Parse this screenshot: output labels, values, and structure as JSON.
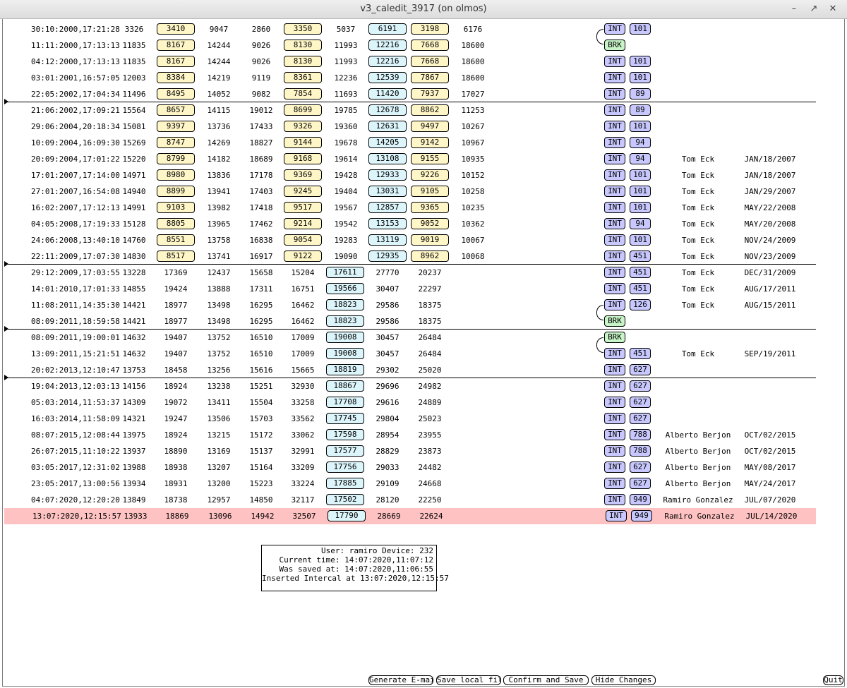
{
  "window": {
    "title": "v3_caledit_3917 (on olmos)"
  },
  "rows": [
    {
      "cells": [
        "30:10:2000,17:21:28",
        "3326",
        "3410",
        "9047",
        "2860",
        "3350",
        "5037",
        "6191",
        "3198",
        "6176"
      ],
      "layout": "A",
      "type": "INT",
      "num": "101",
      "user": "",
      "date": ""
    },
    {
      "cells": [
        "11:11:2000,17:13:13",
        "11835",
        "8167",
        "14244",
        "9026",
        "8130",
        "11993",
        "12216",
        "7668",
        "18600"
      ],
      "layout": "A",
      "type": "BRK",
      "num": "",
      "user": "",
      "date": ""
    },
    {
      "cells": [
        "04:12:2000,17:13:13",
        "11835",
        "8167",
        "14244",
        "9026",
        "8130",
        "11993",
        "12216",
        "7668",
        "18600"
      ],
      "layout": "A",
      "type": "INT",
      "num": "101",
      "user": "",
      "date": ""
    },
    {
      "cells": [
        "03:01:2001,16:57:05",
        "12003",
        "8384",
        "14219",
        "9119",
        "8361",
        "12236",
        "12539",
        "7867",
        "18600"
      ],
      "layout": "A",
      "type": "INT",
      "num": "101",
      "user": "",
      "date": ""
    },
    {
      "cells": [
        "22:05:2002,17:04:34",
        "11496",
        "8495",
        "14052",
        "9082",
        "7854",
        "11693",
        "11420",
        "7937",
        "17027"
      ],
      "layout": "A",
      "type": "INT",
      "num": "89",
      "user": "",
      "date": ""
    },
    {
      "cells": [
        "21:06:2002,17:09:21",
        "15564",
        "8657",
        "14115",
        "19012",
        "8699",
        "19785",
        "12678",
        "8862",
        "11253"
      ],
      "layout": "A",
      "type": "INT",
      "num": "89",
      "user": "",
      "date": ""
    },
    {
      "cells": [
        "29:06:2004,20:18:34",
        "15081",
        "9397",
        "13736",
        "17433",
        "9326",
        "19360",
        "12631",
        "9497",
        "10267"
      ],
      "layout": "A",
      "type": "INT",
      "num": "101",
      "user": "",
      "date": ""
    },
    {
      "cells": [
        "10:09:2004,16:09:30",
        "15269",
        "8747",
        "14269",
        "18827",
        "9144",
        "19678",
        "14205",
        "9142",
        "10967"
      ],
      "layout": "A",
      "type": "INT",
      "num": "94",
      "user": "",
      "date": ""
    },
    {
      "cells": [
        "20:09:2004,17:01:22",
        "15220",
        "8799",
        "14182",
        "18689",
        "9168",
        "19614",
        "13108",
        "9155",
        "10935"
      ],
      "layout": "A",
      "type": "INT",
      "num": "94",
      "user": "Tom Eck",
      "date": "JAN/18/2007"
    },
    {
      "cells": [
        "17:01:2007,17:14:00",
        "14971",
        "8980",
        "13836",
        "17178",
        "9369",
        "19428",
        "12933",
        "9226",
        "10152"
      ],
      "layout": "A",
      "type": "INT",
      "num": "101",
      "user": "Tom Eck",
      "date": "JAN/18/2007"
    },
    {
      "cells": [
        "27:01:2007,16:54:08",
        "14940",
        "8899",
        "13941",
        "17403",
        "9245",
        "19404",
        "13031",
        "9105",
        "10258"
      ],
      "layout": "A",
      "type": "INT",
      "num": "101",
      "user": "Tom Eck",
      "date": "JAN/29/2007"
    },
    {
      "cells": [
        "16:02:2007,17:12:13",
        "14991",
        "9103",
        "13982",
        "17418",
        "9517",
        "19567",
        "12857",
        "9365",
        "10235"
      ],
      "layout": "A",
      "type": "INT",
      "num": "101",
      "user": "Tom Eck",
      "date": "MAY/22/2008"
    },
    {
      "cells": [
        "04:05:2008,17:19:33",
        "15128",
        "8805",
        "13965",
        "17462",
        "9214",
        "19542",
        "13153",
        "9052",
        "10362"
      ],
      "layout": "A",
      "type": "INT",
      "num": "94",
      "user": "Tom Eck",
      "date": "MAY/20/2008"
    },
    {
      "cells": [
        "24:06:2008,13:40:10",
        "14760",
        "8551",
        "13758",
        "16838",
        "9054",
        "19283",
        "13119",
        "9019",
        "10067"
      ],
      "layout": "A",
      "type": "INT",
      "num": "101",
      "user": "Tom Eck",
      "date": "NOV/24/2009"
    },
    {
      "cells": [
        "22:11:2009,17:07:30",
        "14830",
        "8517",
        "13741",
        "16917",
        "9122",
        "19090",
        "12935",
        "8962",
        "10068"
      ],
      "layout": "A",
      "type": "INT",
      "num": "451",
      "user": "Tom Eck",
      "date": "NOV/23/2009"
    },
    {
      "cells": [
        "29:12:2009,17:03:55",
        "13228",
        "17369",
        "12437",
        "15658",
        "15204",
        "17611",
        "27770",
        "20237"
      ],
      "layout": "B",
      "type": "INT",
      "num": "451",
      "user": "Tom Eck",
      "date": "DEC/31/2009"
    },
    {
      "cells": [
        "14:01:2010,17:01:33",
        "14855",
        "19424",
        "13888",
        "17311",
        "16751",
        "19566",
        "30407",
        "22297"
      ],
      "layout": "B",
      "type": "INT",
      "num": "451",
      "user": "Tom Eck",
      "date": "AUG/17/2011"
    },
    {
      "cells": [
        "11:08:2011,14:35:30",
        "14421",
        "18977",
        "13498",
        "16295",
        "16462",
        "18823",
        "29586",
        "18375"
      ],
      "layout": "B",
      "type": "INT",
      "num": "126",
      "user": "Tom Eck",
      "date": "AUG/15/2011"
    },
    {
      "cells": [
        "08:09:2011,18:59:58",
        "14421",
        "18977",
        "13498",
        "16295",
        "16462",
        "18823",
        "29586",
        "18375"
      ],
      "layout": "B",
      "type": "BRK",
      "num": "",
      "user": "",
      "date": ""
    },
    {
      "cells": [
        "08:09:2011,19:00:01",
        "14632",
        "19407",
        "13752",
        "16510",
        "17009",
        "19008",
        "30457",
        "26484"
      ],
      "layout": "B",
      "type": "BRK",
      "num": "",
      "user": "",
      "date": ""
    },
    {
      "cells": [
        "13:09:2011,15:21:51",
        "14632",
        "19407",
        "13752",
        "16510",
        "17009",
        "19008",
        "30457",
        "26484"
      ],
      "layout": "B",
      "type": "INT",
      "num": "451",
      "user": "Tom Eck",
      "date": "SEP/19/2011"
    },
    {
      "cells": [
        "20:02:2013,12:10:47",
        "13753",
        "18458",
        "13256",
        "15616",
        "15665",
        "18819",
        "29302",
        "25020"
      ],
      "layout": "B",
      "type": "INT",
      "num": "627",
      "user": "",
      "date": ""
    },
    {
      "cells": [
        "19:04:2013,12:03:13",
        "14156",
        "18924",
        "13238",
        "15251",
        "32930",
        "18867",
        "29696",
        "24982"
      ],
      "layout": "B",
      "type": "INT",
      "num": "627",
      "user": "",
      "date": ""
    },
    {
      "cells": [
        "05:03:2014,11:53:37",
        "14309",
        "19072",
        "13411",
        "15504",
        "33258",
        "17708",
        "29616",
        "24889"
      ],
      "layout": "B",
      "type": "INT",
      "num": "627",
      "user": "",
      "date": ""
    },
    {
      "cells": [
        "16:03:2014,11:58:09",
        "14321",
        "19247",
        "13506",
        "15703",
        "33562",
        "17745",
        "29804",
        "25023"
      ],
      "layout": "B",
      "type": "INT",
      "num": "627",
      "user": "",
      "date": ""
    },
    {
      "cells": [
        "08:07:2015,12:08:44",
        "13975",
        "18924",
        "13215",
        "15172",
        "33062",
        "17598",
        "28954",
        "23955"
      ],
      "layout": "B",
      "type": "INT",
      "num": "788",
      "user": "Alberto Berjon",
      "date": "OCT/02/2015"
    },
    {
      "cells": [
        "26:07:2015,11:10:22",
        "13937",
        "18890",
        "13169",
        "15137",
        "32991",
        "17577",
        "28829",
        "23873"
      ],
      "layout": "B",
      "type": "INT",
      "num": "788",
      "user": "Alberto Berjon",
      "date": "OCT/02/2015"
    },
    {
      "cells": [
        "03:05:2017,12:31:02",
        "13988",
        "18938",
        "13207",
        "15164",
        "33209",
        "17756",
        "29033",
        "24482"
      ],
      "layout": "B",
      "type": "INT",
      "num": "627",
      "user": "Alberto Berjon",
      "date": "MAY/08/2017"
    },
    {
      "cells": [
        "23:05:2017,13:00:56",
        "13934",
        "18931",
        "13200",
        "15223",
        "33224",
        "17885",
        "29109",
        "24668"
      ],
      "layout": "B",
      "type": "INT",
      "num": "627",
      "user": "Alberto Berjon",
      "date": "MAY/24/2017"
    },
    {
      "cells": [
        "04:07:2020,12:20:20",
        "13849",
        "18738",
        "12957",
        "14850",
        "32117",
        "17502",
        "28120",
        "22250"
      ],
      "layout": "B",
      "type": "INT",
      "num": "949",
      "user": "Ramiro Gonzalez",
      "date": "JUL/07/2020"
    },
    {
      "cells": [
        "13:07:2020,12:15:57",
        "13933",
        "18869",
        "13096",
        "14942",
        "32507",
        "17790",
        "28669",
        "22624"
      ],
      "layout": "B",
      "type": "INT",
      "num": "949",
      "user": "Ramiro Gonzalez",
      "date": "JUL/14/2020",
      "selected": true
    }
  ],
  "info": {
    "line1": "User: ramiro Device: 232",
    "line2": "Current time: 14:07:2020,11:07:12",
    "line3": "Was saved at: 14:07:2020,11:06:55",
    "line4": "Inserted Intercal at 13:07:2020,12:15:57"
  },
  "buttons": {
    "email": "Generate E-mail",
    "savelocal": "Save local file",
    "confirm": "Confirm and Save",
    "hide": "Hide Changes",
    "quit": "Quit"
  },
  "colors": {
    "yellow": "#fff6c8",
    "cyan": "#dcf5fb",
    "blue": "#c8c8ff",
    "green": "#c8f5c8",
    "selected": "#ffc2c2"
  }
}
